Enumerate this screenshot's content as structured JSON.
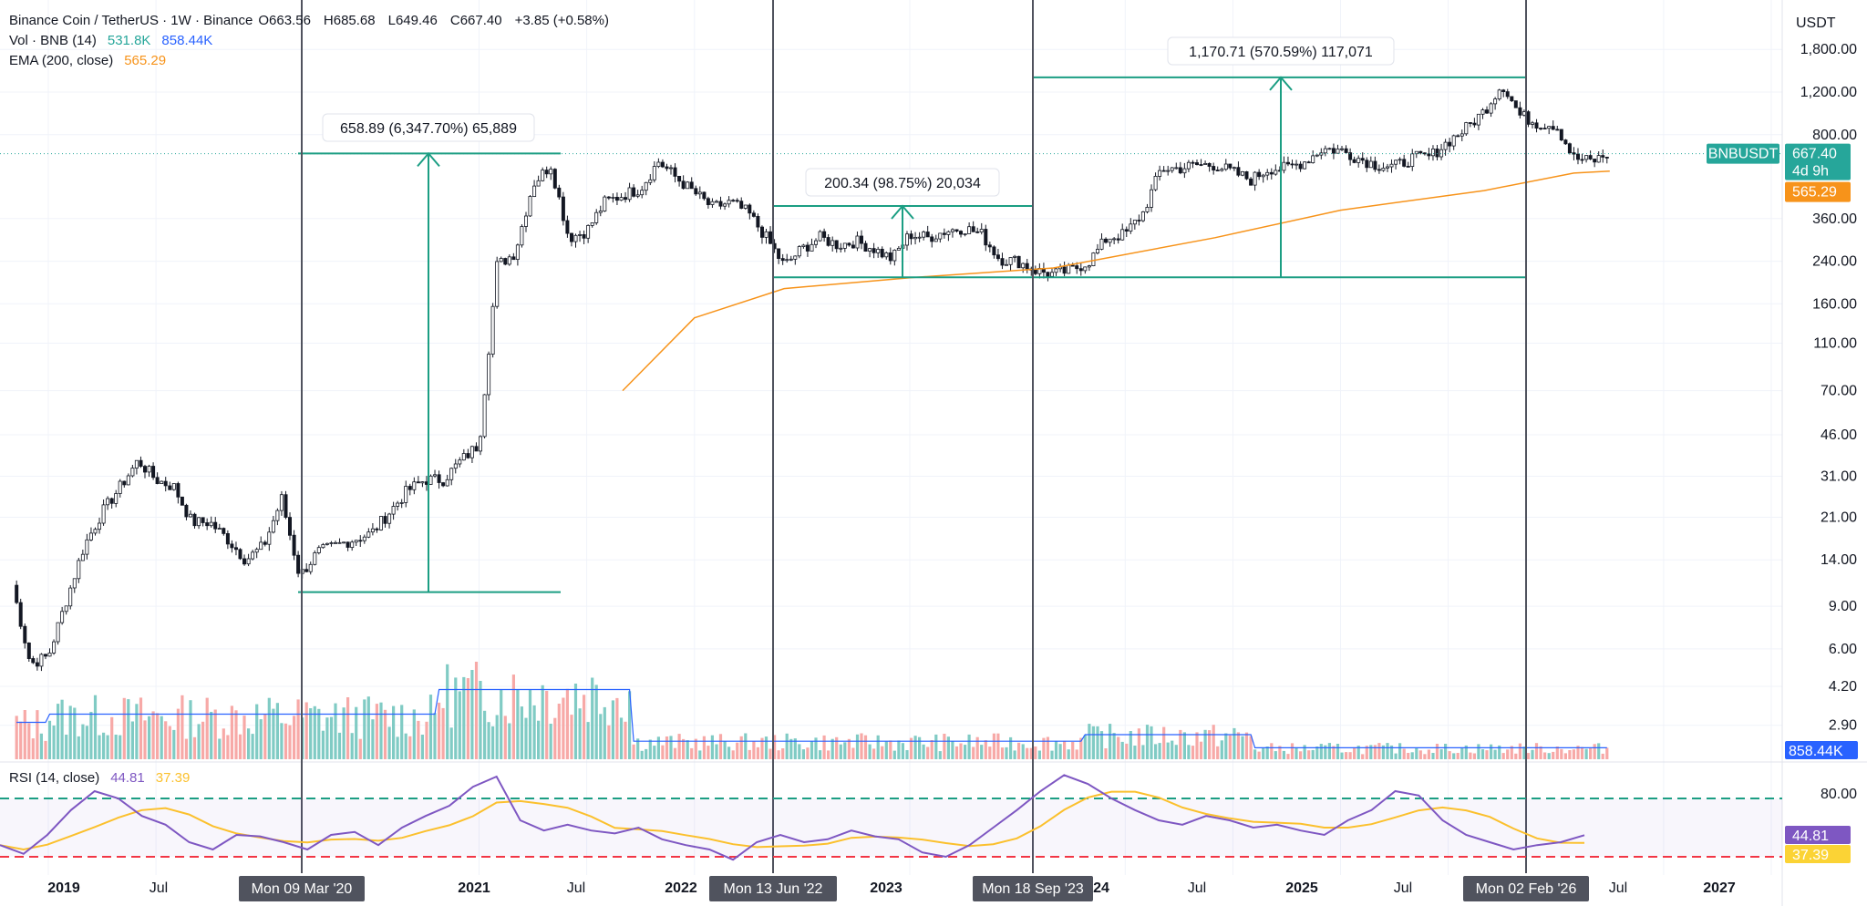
{
  "header": {
    "symbol": "Binance Coin / TetherUS · 1W · Binance",
    "open": "O663.56",
    "high": "H685.68",
    "low": "L649.46",
    "close": "C667.40",
    "change": "+3.85 (+0.58%)",
    "vol_label": "Vol · BNB (14)",
    "vol_value": "531.8K",
    "vol_ma": "858.44K",
    "ema_label": "EMA (200, close)",
    "ema_value": "565.29",
    "rsi_label": "RSI (14, close)",
    "rsi_value": "44.81",
    "rsi_ma": "37.39"
  },
  "price_axis": {
    "currency": "USDT",
    "ticks": [
      "1,800.00",
      "1,200.00",
      "800.00",
      "360.00",
      "240.00",
      "160.00",
      "110.00",
      "70.00",
      "46.00",
      "31.00",
      "21.00",
      "14.00",
      "9.00",
      "6.00",
      "4.20",
      "2.90"
    ],
    "symbol_tag": "BNBUSDT",
    "last_price": "667.40",
    "countdown": "4d 9h",
    "ema_tag": "565.29",
    "vol_tag": "858.44K"
  },
  "rsi_axis": {
    "ticks": [
      "80.00"
    ],
    "rsi_tag": "44.81",
    "rsi_ma_tag": "37.39"
  },
  "time_axis": {
    "labels": [
      "2019",
      "Jul",
      "2021",
      "Jul",
      "2022",
      "2023",
      "24",
      "Jul",
      "2025",
      "Jul",
      "Jul",
      "2027"
    ],
    "markers": [
      "Mon 09 Mar '20",
      "Mon 13 Jun '22",
      "Mon 18 Sep '23",
      "Mon 02 Feb '26"
    ]
  },
  "measurements": [
    {
      "label": "658.89 (6,347.70%) 65,889"
    },
    {
      "label": "200.34 (98.75%) 20,034"
    },
    {
      "label": "1,170.71 (570.59%) 117,071"
    }
  ],
  "colors": {
    "up": "#26a69a",
    "down": "#ef5350",
    "candle": "#131722",
    "ema": "#f7931a",
    "vol_ma": "#2962ff",
    "rsi": "#7e57c2",
    "rsi_ma": "#fbc02d",
    "drawing": "#1b9e83",
    "tag_teal": "#26a69a",
    "tag_orange": "#f7931a",
    "tag_blue": "#2962ff",
    "tag_purple": "#7e57c2",
    "tag_yellow": "#fbd335"
  },
  "chart_data": {
    "type": "candlestick",
    "title": "Binance Coin / TetherUS · 1W · Binance",
    "y_scale": "log",
    "ylabel": "USDT",
    "series": [
      {
        "name": "BNBUSDT",
        "points": [
          [
            "2018-11",
            11
          ],
          [
            "2018-12",
            5.2
          ],
          [
            "2019-01",
            5.6
          ],
          [
            "2019-02",
            9.5
          ],
          [
            "2019-03",
            16
          ],
          [
            "2019-04",
            22
          ],
          [
            "2019-05",
            28
          ],
          [
            "2019-06",
            36
          ],
          [
            "2019-07",
            30
          ],
          [
            "2019-08",
            28
          ],
          [
            "2019-09",
            20
          ],
          [
            "2019-10",
            20
          ],
          [
            "2019-11",
            17
          ],
          [
            "2019-12",
            14
          ],
          [
            "2020-01",
            16
          ],
          [
            "2020-02",
            25
          ],
          [
            "2020-03",
            12
          ],
          [
            "2020-04",
            15
          ],
          [
            "2020-05",
            16
          ],
          [
            "2020-06",
            17
          ],
          [
            "2020-07",
            18
          ],
          [
            "2020-08",
            22
          ],
          [
            "2020-09",
            27
          ],
          [
            "2020-10",
            30
          ],
          [
            "2020-11",
            30
          ],
          [
            "2020-12",
            36
          ],
          [
            "2021-01",
            42
          ],
          [
            "2021-02",
            230
          ],
          [
            "2021-03",
            260
          ],
          [
            "2021-04",
            500
          ],
          [
            "2021-05",
            600
          ],
          [
            "2021-06",
            300
          ],
          [
            "2021-07",
            320
          ],
          [
            "2021-08",
            420
          ],
          [
            "2021-09",
            450
          ],
          [
            "2021-10",
            480
          ],
          [
            "2021-11",
            620
          ],
          [
            "2021-12",
            530
          ],
          [
            "2022-01",
            460
          ],
          [
            "2022-02",
            400
          ],
          [
            "2022-03",
            420
          ],
          [
            "2022-04",
            380
          ],
          [
            "2022-05",
            300
          ],
          [
            "2022-06",
            230
          ],
          [
            "2022-07",
            270
          ],
          [
            "2022-08",
            300
          ],
          [
            "2022-09",
            280
          ],
          [
            "2022-10",
            290
          ],
          [
            "2022-11",
            270
          ],
          [
            "2022-12",
            245
          ],
          [
            "2023-01",
            310
          ],
          [
            "2023-02",
            300
          ],
          [
            "2023-03",
            320
          ],
          [
            "2023-04",
            330
          ],
          [
            "2023-05",
            310
          ],
          [
            "2023-06",
            245
          ],
          [
            "2023-07",
            240
          ],
          [
            "2023-08",
            220
          ],
          [
            "2023-09",
            212
          ],
          [
            "2023-10",
            220
          ],
          [
            "2023-11",
            240
          ],
          [
            "2023-12",
            300
          ],
          [
            "2024-01",
            310
          ],
          [
            "2024-02",
            380
          ],
          [
            "2024-03",
            580
          ],
          [
            "2024-04",
            580
          ],
          [
            "2024-05",
            600
          ],
          [
            "2024-06",
            600
          ],
          [
            "2024-07",
            560
          ],
          [
            "2024-08",
            520
          ],
          [
            "2024-09",
            580
          ],
          [
            "2024-10",
            580
          ],
          [
            "2024-11",
            620
          ],
          [
            "2024-12",
            700
          ],
          [
            "2025-01",
            690
          ],
          [
            "2025-02",
            640
          ],
          [
            "2025-03",
            600
          ],
          [
            "2025-04",
            590
          ],
          [
            "2025-05",
            640
          ],
          [
            "2025-06",
            650
          ],
          [
            "2025-07",
            750
          ],
          [
            "2025-08",
            850
          ],
          [
            "2025-09",
            1000
          ],
          [
            "2025-10",
            1300
          ],
          [
            "2025-11",
            960
          ],
          [
            "2025-12",
            890
          ],
          [
            "2026-01",
            880
          ],
          [
            "2026-02",
            640
          ],
          [
            "2026-03",
            620
          ],
          [
            "2026-04",
            667.4
          ]
        ]
      },
      {
        "name": "EMA (200, close)",
        "points": [
          [
            "2021-09",
            70
          ],
          [
            "2022-01",
            140
          ],
          [
            "2022-06",
            185
          ],
          [
            "2023-01",
            205
          ],
          [
            "2023-09",
            225
          ],
          [
            "2024-06",
            300
          ],
          [
            "2025-01",
            390
          ],
          [
            "2025-09",
            470
          ],
          [
            "2026-02",
            555
          ],
          [
            "2026-04",
            565.29
          ]
        ]
      }
    ],
    "measurements": [
      {
        "from": 10.3,
        "to": 669,
        "label": "658.89 (6,347.70%) 65,889"
      },
      {
        "from": 206,
        "to": 406,
        "label": "200.34 (98.75%) 20,034"
      },
      {
        "from": 206,
        "to": 1380,
        "label": "1,170.71 (570.59%) 117,071"
      }
    ],
    "vertical_markers": [
      "Mon 09 Mar '20",
      "Mon 13 Jun '22",
      "Mon 18 Sep '23",
      "Mon 02 Feb '26"
    ],
    "rsi": {
      "levels": [
        70,
        30
      ],
      "current": 44.81,
      "ma": 37.39,
      "values": [
        38,
        32,
        45,
        62,
        75,
        70,
        58,
        52,
        40,
        35,
        45,
        44,
        40,
        35,
        45,
        47,
        38,
        50,
        58,
        65,
        78,
        85,
        55,
        48,
        52,
        48,
        46,
        50,
        42,
        38,
        35,
        28,
        40,
        45,
        40,
        42,
        48,
        44,
        42,
        33,
        30,
        38,
        50,
        62,
        75,
        86,
        80,
        70,
        62,
        55,
        52,
        58,
        55,
        50,
        52,
        48,
        45,
        55,
        62,
        75,
        72,
        55,
        45,
        40,
        35,
        38,
        40,
        44.81
      ]
    },
    "volume_ma_current": "858.44K"
  }
}
